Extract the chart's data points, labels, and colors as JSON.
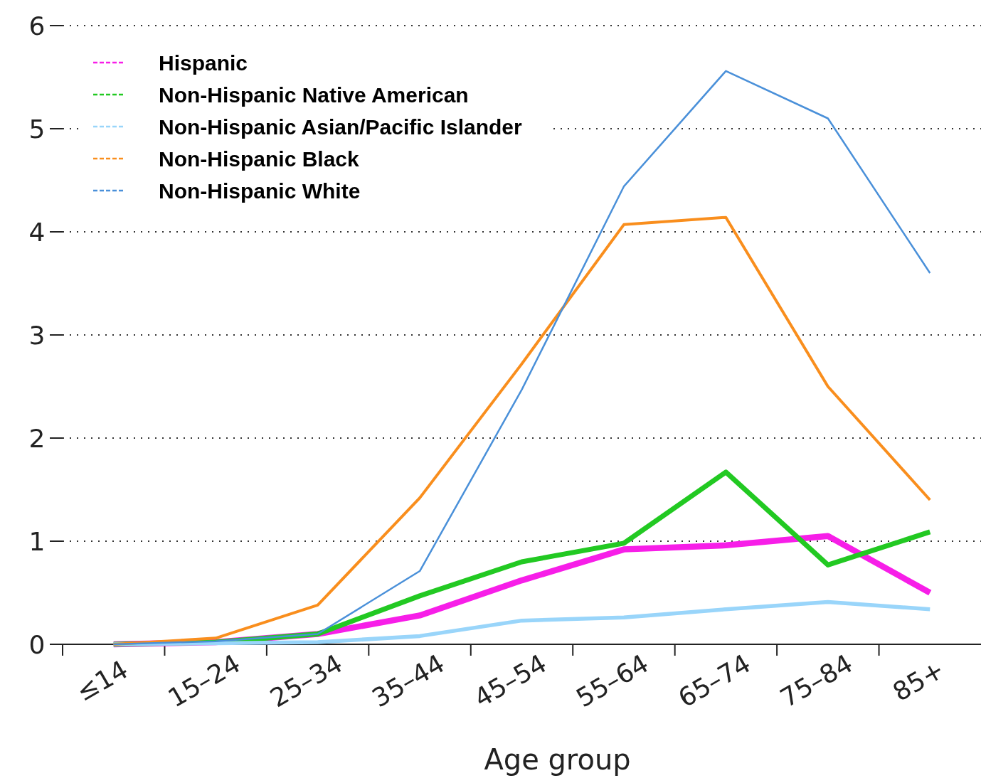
{
  "chart_data": {
    "type": "line",
    "xlabel": "Age group",
    "categories": [
      "≤14",
      "15–24",
      "25–34",
      "35–44",
      "45–54",
      "55–64",
      "65–74",
      "75–84",
      "85+"
    ],
    "series": [
      {
        "name": "Hispanic",
        "color": "#f71ee8",
        "values": [
          0,
          0.02,
          0.1,
          0.28,
          0.62,
          0.92,
          0.96,
          1.05,
          0.5
        ]
      },
      {
        "name": "Non-Hispanic Native American",
        "color": "#22c922",
        "values": [
          0,
          0.02,
          0.1,
          0.47,
          0.8,
          0.98,
          1.67,
          0.77,
          1.09
        ]
      },
      {
        "name": "Non-Hispanic Asian/Pacific Islander",
        "color": "#99d5fa",
        "values": [
          0,
          0.01,
          0.02,
          0.08,
          0.23,
          0.26,
          0.34,
          0.41,
          0.34
        ]
      },
      {
        "name": "Non-Hispanic Black",
        "color": "#f98e1d",
        "values": [
          0,
          0.06,
          0.38,
          1.42,
          2.72,
          4.07,
          4.14,
          2.5,
          1.4
        ]
      },
      {
        "name": "Non-Hispanic White",
        "color": "#4a90d9",
        "values": [
          0,
          0.03,
          0.1,
          0.71,
          2.47,
          4.44,
          5.56,
          5.1,
          3.6
        ]
      }
    ],
    "ylim": [
      0,
      6
    ],
    "yticks": [
      0,
      1,
      2,
      3,
      4,
      5,
      6
    ],
    "grid": "y",
    "legend": "top left",
    "marker": "none",
    "line_style": "solid"
  }
}
